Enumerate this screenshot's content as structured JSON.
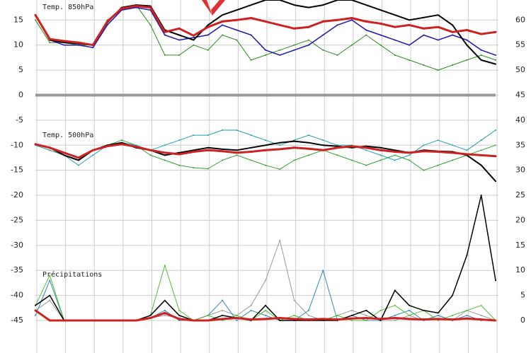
{
  "chart_data": {
    "type": "line",
    "annotations": [
      "Temp. 850hPa",
      "Temp. 500hPa",
      "Précipitations"
    ],
    "categories": [
      null,
      null,
      null,
      null,
      null,
      null,
      null,
      null,
      null,
      null,
      null,
      null,
      null,
      null,
      null,
      null,
      null,
      null,
      null,
      null,
      null,
      null,
      null,
      null,
      null,
      null,
      null,
      null,
      null,
      null,
      null,
      null,
      null
    ],
    "ylim": [
      -51.5,
      19
    ],
    "yticks": [
      15,
      10,
      5,
      0,
      -5,
      -10,
      -15,
      -20,
      -25,
      -30,
      -35,
      -40,
      -45
    ],
    "y2lim": [
      -6.5,
      64
    ],
    "y2ticks": [
      60,
      55,
      50,
      45,
      40,
      35,
      30,
      25,
      20,
      15,
      10,
      5,
      0
    ],
    "grid": true,
    "series": [
      {
        "color": "#2e8b22",
        "line_width": 1,
        "values": [
          15,
          10.5,
          10.5,
          10,
          10,
          15,
          17,
          18,
          14,
          8,
          8,
          10,
          9,
          12,
          11,
          7,
          8,
          9,
          10,
          11,
          9,
          8,
          10,
          12,
          10,
          8,
          7,
          6,
          5,
          6,
          7,
          8,
          7
        ]
      },
      {
        "color": "#1a1aaa",
        "line_width": 1.5,
        "values": [
          16,
          11,
          10,
          10,
          9.5,
          14,
          17,
          17.5,
          17,
          12,
          11,
          11.5,
          12,
          14,
          13,
          12,
          9,
          8,
          9,
          10,
          12,
          14,
          15,
          13,
          12,
          11,
          10,
          12,
          11,
          12,
          11,
          9,
          8
        ]
      },
      {
        "color": "#000000",
        "line_width": 2,
        "values": [
          16,
          11,
          10.5,
          10.3,
          10,
          14.5,
          17.5,
          18,
          17.8,
          13,
          12,
          11,
          14,
          16,
          17,
          18,
          19,
          19,
          18,
          17.5,
          18,
          19,
          19,
          18,
          17,
          16,
          15,
          15.5,
          16,
          14,
          10,
          7,
          6.2
        ]
      },
      {
        "color": "#cc2222",
        "line_width": 3,
        "values": [
          16,
          11.2,
          10.8,
          10.5,
          10,
          14.7,
          17.3,
          17.8,
          17.5,
          12.6,
          13.3,
          11.9,
          13.6,
          14.7,
          15,
          15.4,
          14.7,
          14,
          13.3,
          13.6,
          14.7,
          15,
          15.4,
          14.7,
          14.3,
          13.6,
          14,
          13.3,
          13.6,
          12.6,
          13,
          12.2,
          12.6
        ]
      },
      {
        "color": "#33a033",
        "line_width": 1,
        "values": [
          -10,
          -11,
          -12,
          -13,
          -11,
          -10,
          -9,
          -10,
          -12,
          -13,
          -14,
          -14.5,
          -14.7,
          -13,
          -12,
          -13,
          -14,
          -14.8,
          -13,
          -12,
          -11,
          -12,
          -13,
          -14,
          -13,
          -12,
          -13,
          -15,
          -14,
          -13,
          -12,
          -11,
          -10
        ]
      },
      {
        "color": "#20a0b0",
        "line_width": 1,
        "values": [
          -10,
          -11,
          -12,
          -14,
          -12,
          -10,
          -9.5,
          -10,
          -11,
          -10,
          -9,
          -8,
          -8,
          -7,
          -7,
          -8,
          -9,
          -10,
          -9,
          -8,
          -9,
          -10,
          -10,
          -11,
          -12,
          -13,
          -12,
          -10,
          -9,
          -10,
          -11,
          -9,
          -7
        ]
      },
      {
        "color": "#000000",
        "line_width": 2,
        "values": [
          -9.8,
          -10.5,
          -12,
          -13,
          -11,
          -10,
          -9.5,
          -10.5,
          -11,
          -12,
          -11.5,
          -11,
          -10.5,
          -10.8,
          -11,
          -10.5,
          -10,
          -9.5,
          -9.2,
          -9.5,
          -10,
          -10.2,
          -10.5,
          -10.2,
          -10.5,
          -11,
          -11.5,
          -11,
          -11.2,
          -11.3,
          -12,
          -14,
          -17.2
        ]
      },
      {
        "color": "#cc2222",
        "line_width": 3,
        "values": [
          -9.8,
          -10.5,
          -11.5,
          -12.5,
          -11,
          -10.2,
          -9.8,
          -10.3,
          -11,
          -11.5,
          -11.8,
          -11.3,
          -11,
          -11.2,
          -11.5,
          -11.3,
          -11,
          -10.8,
          -10.5,
          -10.7,
          -11,
          -10.5,
          -10.2,
          -10.5,
          -11,
          -11.3,
          -11.5,
          -11.2,
          -11.3,
          -11.5,
          -11.8,
          -12,
          -12.2
        ]
      },
      {
        "color": "#999999",
        "line_width": 1,
        "axis": "y2",
        "values": [
          2,
          4,
          0,
          0,
          0,
          0,
          0,
          0,
          0.5,
          1,
          0.5,
          0,
          1,
          2,
          1,
          3,
          8,
          16,
          4,
          1,
          0,
          1,
          2,
          1,
          0,
          0,
          1,
          0,
          1,
          0,
          2,
          1,
          0
        ]
      },
      {
        "color": "#3388bb",
        "line_width": 1,
        "axis": "y2",
        "values": [
          1,
          8,
          0,
          0,
          0,
          0,
          0,
          0,
          0.5,
          2,
          0,
          0,
          1,
          4,
          0,
          2,
          1,
          0,
          0,
          2,
          10,
          0,
          1,
          0,
          0,
          1,
          2,
          0,
          1,
          0,
          1,
          0,
          0
        ]
      },
      {
        "color": "#55bb33",
        "line_width": 1,
        "axis": "y2",
        "values": [
          3,
          9,
          0,
          0,
          0,
          0,
          0,
          0,
          1,
          11,
          2,
          0,
          1,
          0,
          1,
          0,
          2,
          0,
          1,
          0,
          0,
          1,
          0,
          0,
          2,
          3,
          1,
          2,
          0,
          1,
          2,
          3,
          0
        ]
      },
      {
        "color": "#000000",
        "line_width": 1.5,
        "axis": "y2",
        "values": [
          3,
          5,
          0,
          0,
          0,
          0,
          0,
          0,
          1,
          4,
          1,
          0,
          0,
          1,
          0.5,
          0,
          3,
          0,
          0,
          0,
          0,
          0,
          1,
          2,
          0,
          6,
          3,
          2,
          1.5,
          5,
          13,
          25,
          8
        ]
      },
      {
        "color": "#cc2222",
        "line_width": 3,
        "axis": "y2",
        "values": [
          2,
          0,
          0,
          0,
          0,
          0,
          0,
          0,
          0.5,
          1.5,
          0.3,
          0,
          0,
          0.3,
          0.5,
          0.2,
          0.3,
          0.5,
          0.3,
          0.2,
          0.3,
          0.2,
          0.4,
          0.5,
          0.3,
          0.5,
          0.3,
          0.2,
          0.3,
          0.2,
          0.4,
          0.2,
          0
        ]
      }
    ]
  }
}
